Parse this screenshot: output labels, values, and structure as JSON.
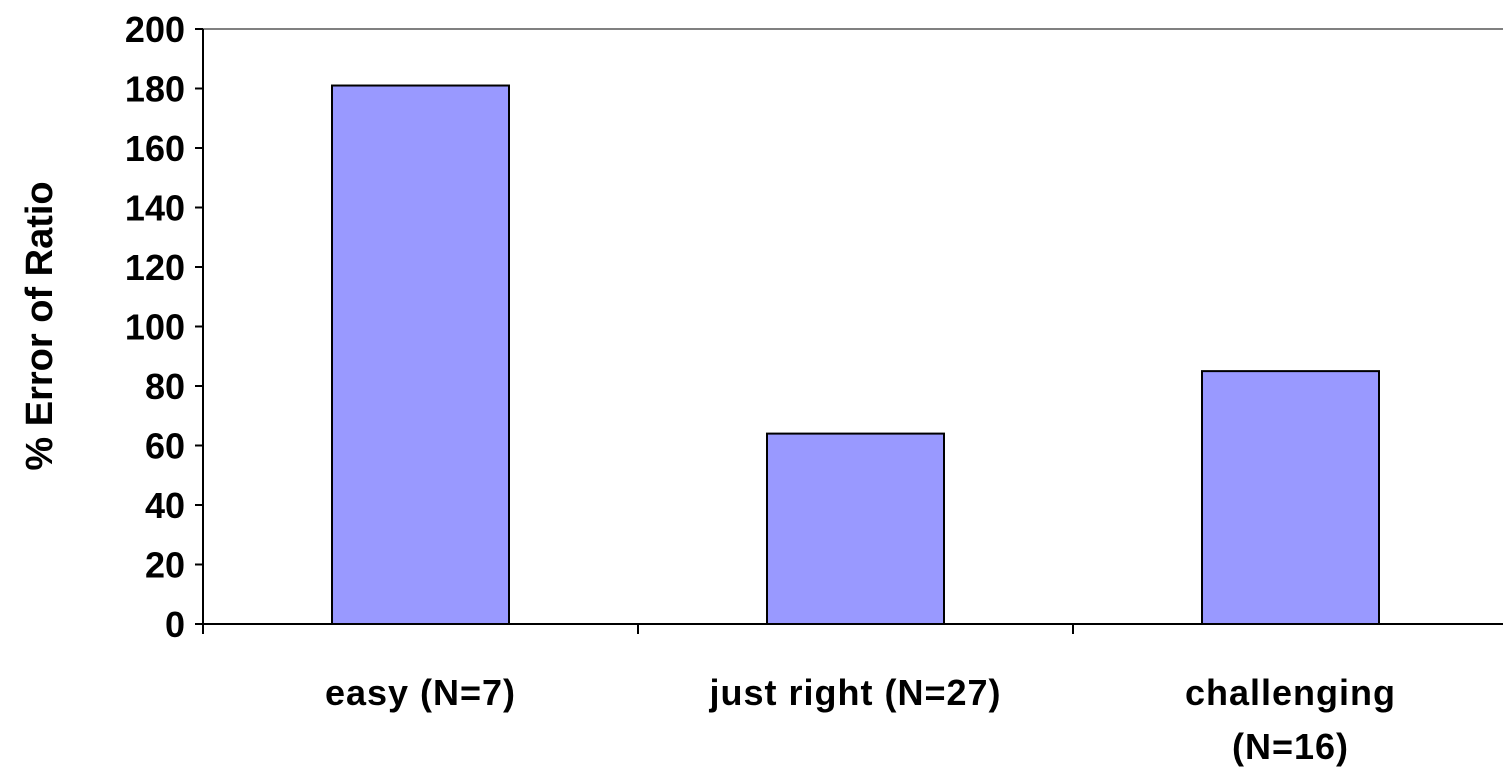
{
  "chart_data": {
    "type": "bar",
    "categories": [
      "easy (N=7)",
      "just right (N=27)",
      "challenging (N=16)"
    ],
    "category_lines": [
      [
        "easy (N=7)"
      ],
      [
        "just right (N=27)"
      ],
      [
        "challenging",
        "(N=16)"
      ]
    ],
    "values": [
      181,
      64,
      85
    ],
    "ylabel": "% Error of Ratio",
    "xlabel": "",
    "title": "",
    "ylim": [
      0,
      200
    ],
    "yticks": [
      0,
      20,
      40,
      60,
      80,
      100,
      120,
      140,
      160,
      180,
      200
    ],
    "grid": false,
    "legend": "none",
    "colors": {
      "bar_fill": "#9999ff",
      "bar_stroke": "#000000",
      "axis": "#000000",
      "plot_border": "#808080",
      "background": "#ffffff"
    }
  }
}
